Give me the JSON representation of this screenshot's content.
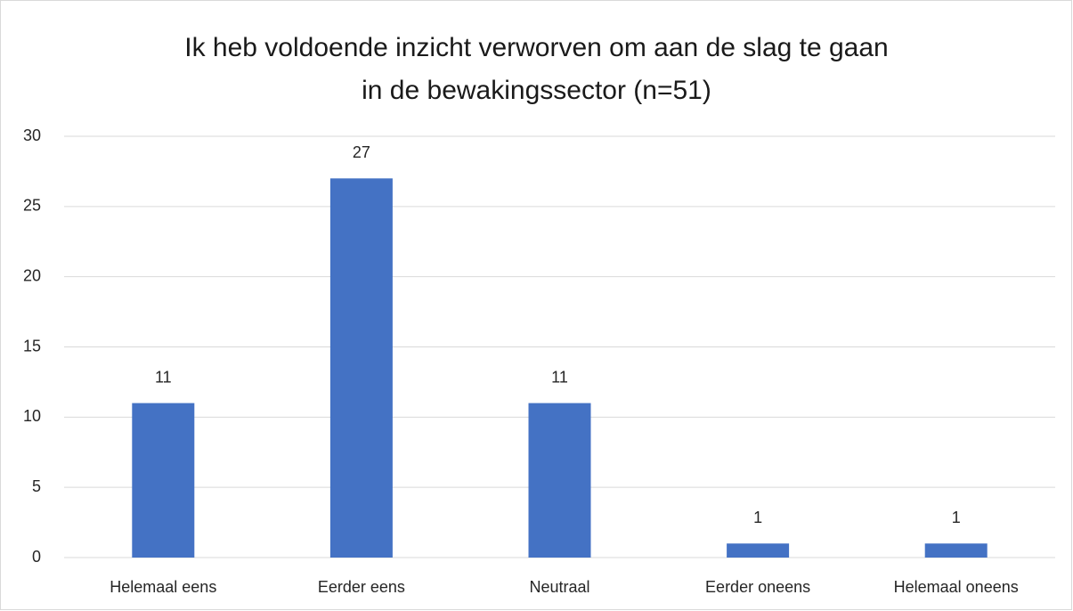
{
  "chart_data": {
    "type": "bar",
    "title": "Ik heb voldoende inzicht verworven om aan de slag te gaan in de bewakingssector (n=51)",
    "categories": [
      "Helemaal eens",
      "Eerder eens",
      "Neutraal",
      "Eerder oneens",
      "Helemaal oneens"
    ],
    "values": [
      11,
      27,
      11,
      1,
      1
    ],
    "color": "#4472c4",
    "ylim": [
      0,
      30
    ],
    "yticks": [
      0,
      5,
      10,
      15,
      20,
      25,
      30
    ],
    "grid": true
  }
}
